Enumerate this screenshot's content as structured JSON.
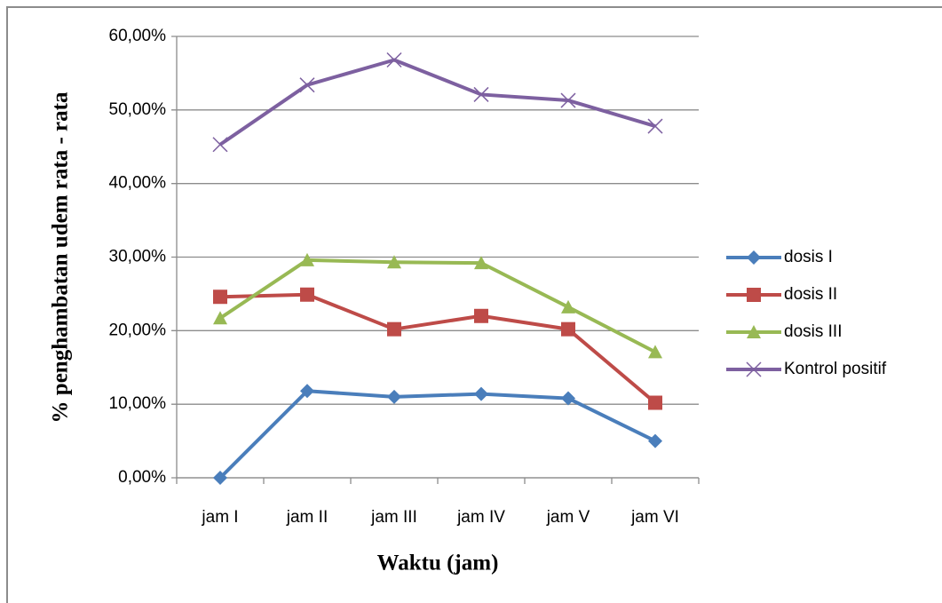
{
  "chart_data": {
    "type": "line",
    "x_label": "Waktu (jam)",
    "y_label": "% penghambatan udem rata - rata",
    "categories": [
      "jam I",
      "jam II",
      "jam III",
      "jam IV",
      "jam V",
      "jam VI"
    ],
    "series": [
      {
        "name": "dosis I",
        "color": "#4a7ebb",
        "marker": "diamond",
        "values": [
          0,
          11.8,
          11.0,
          11.4,
          10.8,
          5.0
        ]
      },
      {
        "name": "dosis II",
        "color": "#be4b48",
        "marker": "square",
        "values": [
          24.6,
          24.9,
          20.2,
          22.0,
          20.2,
          10.2
        ]
      },
      {
        "name": "dosis III",
        "color": "#98b954",
        "marker": "triangle",
        "values": [
          21.7,
          29.6,
          29.3,
          29.2,
          23.2,
          17.1
        ]
      },
      {
        "name": "Kontrol positif",
        "color": "#7d60a0",
        "marker": "x",
        "values": [
          45.3,
          53.4,
          56.8,
          52.1,
          51.3,
          47.8
        ]
      }
    ],
    "ylim": [
      0,
      60
    ],
    "yticks": [
      {
        "value": 0,
        "label": "0,00%"
      },
      {
        "value": 10,
        "label": "10,00%"
      },
      {
        "value": 20,
        "label": "20,00%"
      },
      {
        "value": 30,
        "label": "30,00%"
      },
      {
        "value": 40,
        "label": "40,00%"
      },
      {
        "value": 50,
        "label": "50,00%"
      },
      {
        "value": 60,
        "label": "60,00%"
      }
    ],
    "grid": true,
    "legend": "right"
  }
}
